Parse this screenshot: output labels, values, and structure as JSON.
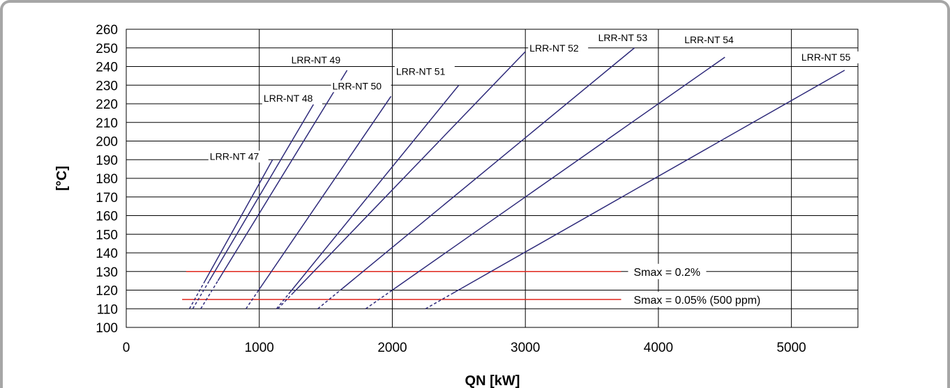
{
  "chart_data": {
    "type": "line",
    "xlabel": "QN [kW]",
    "ylabel": "[°C]",
    "xlim": [
      0,
      5500
    ],
    "ylim": [
      100,
      260
    ],
    "x_ticks": [
      0,
      1000,
      2000,
      3000,
      4000,
      5000
    ],
    "y_ticks": [
      100,
      110,
      120,
      130,
      140,
      150,
      160,
      170,
      180,
      190,
      200,
      210,
      220,
      230,
      240,
      250,
      260
    ],
    "grid": true,
    "colors": {
      "series": "#2e2a7a",
      "limit": "#e0251b",
      "grid": "#000000"
    },
    "series": [
      {
        "name": "LRR-NT 47",
        "points": [
          [
            475,
            110
          ],
          [
            1100,
            190
          ]
        ],
        "solid_from_y": 125
      },
      {
        "name": "LRR-NT 48",
        "points": [
          [
            500,
            110
          ],
          [
            1410,
            220
          ]
        ],
        "solid_from_y": 125
      },
      {
        "name": "LRR-NT 49",
        "points": [
          [
            560,
            110
          ],
          [
            1660,
            238
          ]
        ],
        "solid_from_y": 125
      },
      {
        "name": "LRR-NT 50",
        "points": [
          [
            900,
            110
          ],
          [
            1990,
            224
          ]
        ],
        "solid_from_y": 120
      },
      {
        "name": "LRR-NT 51",
        "points": [
          [
            1130,
            110
          ],
          [
            2500,
            230
          ]
        ],
        "solid_from_y": 118
      },
      {
        "name": "LRR-NT 52",
        "points": [
          [
            1140,
            110
          ],
          [
            3000,
            248
          ]
        ],
        "solid_from_y": 118
      },
      {
        "name": "LRR-NT 53",
        "points": [
          [
            1440,
            110
          ],
          [
            3820,
            250
          ]
        ],
        "solid_from_y": 120
      },
      {
        "name": "LRR-NT 54",
        "points": [
          [
            1800,
            110
          ],
          [
            4500,
            245
          ]
        ],
        "solid_from_y": 120
      },
      {
        "name": "LRR-NT 55",
        "points": [
          [
            2250,
            110
          ],
          [
            5400,
            238
          ]
        ],
        "solid_from_y": 118
      }
    ],
    "limits": [
      {
        "name": "Smax = 0.2%",
        "y": 130,
        "x_range": [
          450,
          3720
        ]
      },
      {
        "name": "Smax = 0.05% (500 ppm)",
        "y": 115,
        "x_range": [
          420,
          3720
        ]
      }
    ]
  }
}
